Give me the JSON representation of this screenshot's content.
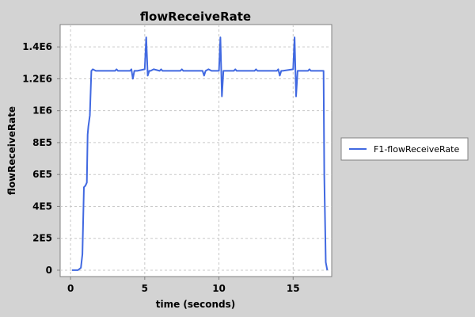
{
  "chart_data": {
    "type": "line",
    "title": "flowReceiveRate",
    "xlabel": "time (seconds)",
    "ylabel": "flowReceiveRate",
    "xlim": [
      -0.7,
      17.6
    ],
    "ylim": [
      -40000,
      1540000
    ],
    "xticks": [
      0,
      5,
      10,
      15
    ],
    "xtick_labels": [
      "0",
      "5",
      "10",
      "15"
    ],
    "yticks": [
      0,
      200000,
      400000,
      600000,
      800000,
      1000000,
      1200000,
      1400000
    ],
    "ytick_labels": [
      "0",
      "2E5",
      "4E5",
      "6E5",
      "8E5",
      "1E6",
      "1.2E6",
      "1.4E6"
    ],
    "grid": true,
    "legend_position": "right",
    "series": [
      {
        "name": "F1-flowReceiveRate",
        "color": "#4169e1",
        "x": [
          0.1,
          0.3,
          0.5,
          0.7,
          0.8,
          0.9,
          1.0,
          1.1,
          1.15,
          1.2,
          1.3,
          1.4,
          1.5,
          1.7,
          2.0,
          2.5,
          3.0,
          3.1,
          3.2,
          3.5,
          4.0,
          4.1,
          4.2,
          4.3,
          4.5,
          5.0,
          5.1,
          5.2,
          5.3,
          5.4,
          5.6,
          6.0,
          6.1,
          6.2,
          7.0,
          7.4,
          7.5,
          7.6,
          8.0,
          8.9,
          9.0,
          9.1,
          9.3,
          9.5,
          10.0,
          10.1,
          10.2,
          10.3,
          10.4,
          11.0,
          11.1,
          11.2,
          12.0,
          12.4,
          12.5,
          12.6,
          13.5,
          13.9,
          14.0,
          14.1,
          14.2,
          14.3,
          15.0,
          15.1,
          15.2,
          15.3,
          15.4,
          16.0,
          16.1,
          16.2,
          17.0,
          17.05,
          17.1,
          17.2,
          17.3
        ],
        "values": [
          0,
          0,
          0,
          15000,
          100000,
          520000,
          530000,
          550000,
          850000,
          900000,
          970000,
          1250000,
          1260000,
          1250000,
          1250000,
          1250000,
          1250000,
          1260000,
          1250000,
          1250000,
          1250000,
          1260000,
          1200000,
          1250000,
          1250000,
          1260000,
          1460000,
          1220000,
          1250000,
          1250000,
          1260000,
          1250000,
          1260000,
          1250000,
          1250000,
          1250000,
          1260000,
          1250000,
          1250000,
          1250000,
          1220000,
          1250000,
          1260000,
          1250000,
          1250000,
          1460000,
          1090000,
          1250000,
          1250000,
          1250000,
          1260000,
          1250000,
          1250000,
          1250000,
          1260000,
          1250000,
          1250000,
          1250000,
          1260000,
          1220000,
          1250000,
          1250000,
          1260000,
          1460000,
          1090000,
          1250000,
          1250000,
          1250000,
          1260000,
          1250000,
          1250000,
          1250000,
          600000,
          50000,
          0
        ]
      }
    ]
  }
}
